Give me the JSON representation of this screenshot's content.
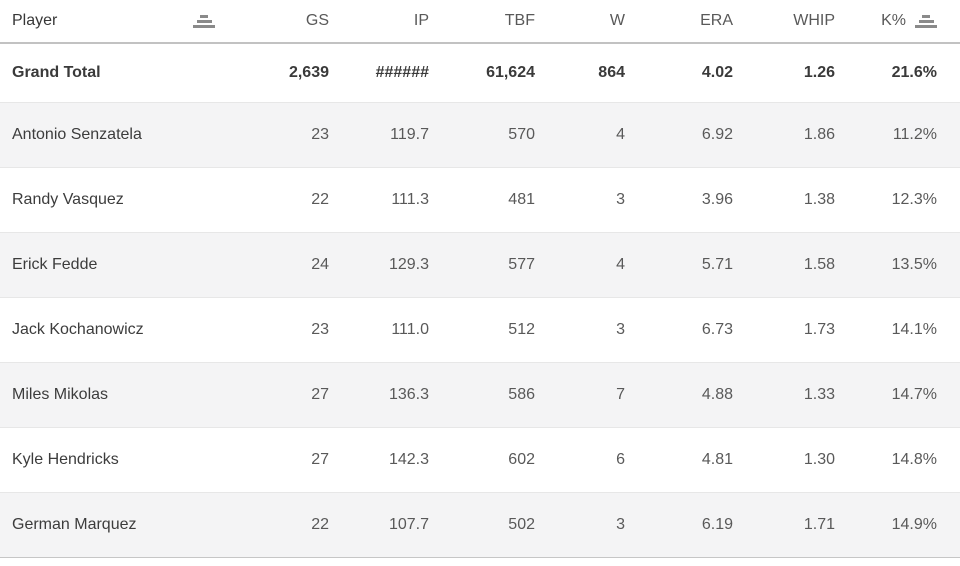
{
  "chart_data": {
    "type": "table",
    "title": "",
    "legend": null,
    "grid": "row-banding",
    "columns": [
      {
        "label": "Player",
        "align": "left",
        "sorted": true
      },
      {
        "label": "GS",
        "align": "right",
        "sorted": false
      },
      {
        "label": "IP",
        "align": "right",
        "sorted": false
      },
      {
        "label": "TBF",
        "align": "right",
        "sorted": false
      },
      {
        "label": "W",
        "align": "right",
        "sorted": false
      },
      {
        "label": "ERA",
        "align": "right",
        "sorted": false
      },
      {
        "label": "WHIP",
        "align": "right",
        "sorted": false
      },
      {
        "label": "K%",
        "align": "right",
        "sorted": true
      }
    ],
    "grand_total": [
      "Grand Total",
      "2,639",
      "######",
      "61,624",
      "864",
      "4.02",
      "1.26",
      "21.6%"
    ],
    "rows": [
      [
        "Antonio Senzatela",
        "23",
        "119.7",
        "570",
        "4",
        "6.92",
        "1.86",
        "11.2%"
      ],
      [
        "Randy Vasquez",
        "22",
        "111.3",
        "481",
        "3",
        "3.96",
        "1.38",
        "12.3%"
      ],
      [
        "Erick Fedde",
        "24",
        "129.3",
        "577",
        "4",
        "5.71",
        "1.58",
        "13.5%"
      ],
      [
        "Jack Kochanowicz",
        "23",
        "111.0",
        "512",
        "3",
        "6.73",
        "1.73",
        "14.1%"
      ],
      [
        "Miles Mikolas",
        "27",
        "136.3",
        "586",
        "7",
        "4.88",
        "1.33",
        "14.7%"
      ],
      [
        "Kyle Hendricks",
        "27",
        "142.3",
        "602",
        "6",
        "4.81",
        "1.30",
        "14.8%"
      ],
      [
        "German Marquez",
        "22",
        "107.7",
        "502",
        "3",
        "6.19",
        "1.71",
        "14.9%"
      ]
    ]
  },
  "icons": {
    "sort_ascending": "three stacked horizontal bars widening downward (Tableau ascending sort)"
  },
  "colors": {
    "row_band": "#f4f4f5",
    "row_white": "#ffffff",
    "header_text": "#373737",
    "name_text": "#3c3c3c",
    "value_text": "#595959",
    "header_border": "#c2c2c2",
    "row_border": "#e7e7e7",
    "table_bottom_border": "#c6c6c6",
    "sort_icon": "#8a8a8a"
  }
}
